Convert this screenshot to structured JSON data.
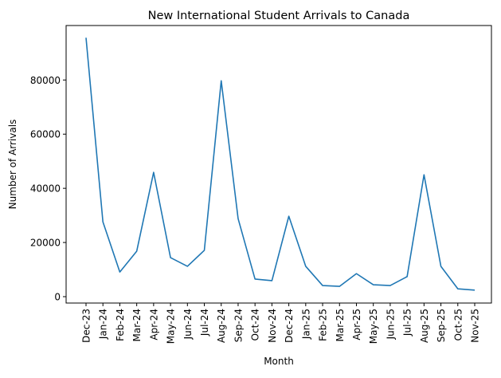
{
  "chart_data": {
    "type": "line",
    "title": "New International Student Arrivals to Canada",
    "xlabel": "Month",
    "ylabel": "Number of Arrivals",
    "categories": [
      "Dec-23",
      "Jan-24",
      "Feb-24",
      "Mar-24",
      "Apr-24",
      "May-24",
      "Jun-24",
      "Jul-24",
      "Aug-24",
      "Sep-24",
      "Oct-24",
      "Nov-24",
      "Dec-24",
      "Jan-25",
      "Feb-25",
      "Mar-25",
      "Apr-25",
      "May-25",
      "Jun-25",
      "Jul-25",
      "Aug-25",
      "Sep-25",
      "Oct-25",
      "Nov-25"
    ],
    "values": [
      95600,
      27600,
      9100,
      16800,
      45900,
      14400,
      11200,
      17100,
      79700,
      28800,
      6500,
      5900,
      29700,
      11200,
      4100,
      3800,
      8500,
      4400,
      4100,
      7400,
      45000,
      11200,
      2900,
      2400
    ],
    "yticks": [
      0,
      20000,
      40000,
      60000,
      80000
    ],
    "ylim": [
      -2400,
      100000
    ],
    "grid": false,
    "line_color": "#1f77b4"
  }
}
